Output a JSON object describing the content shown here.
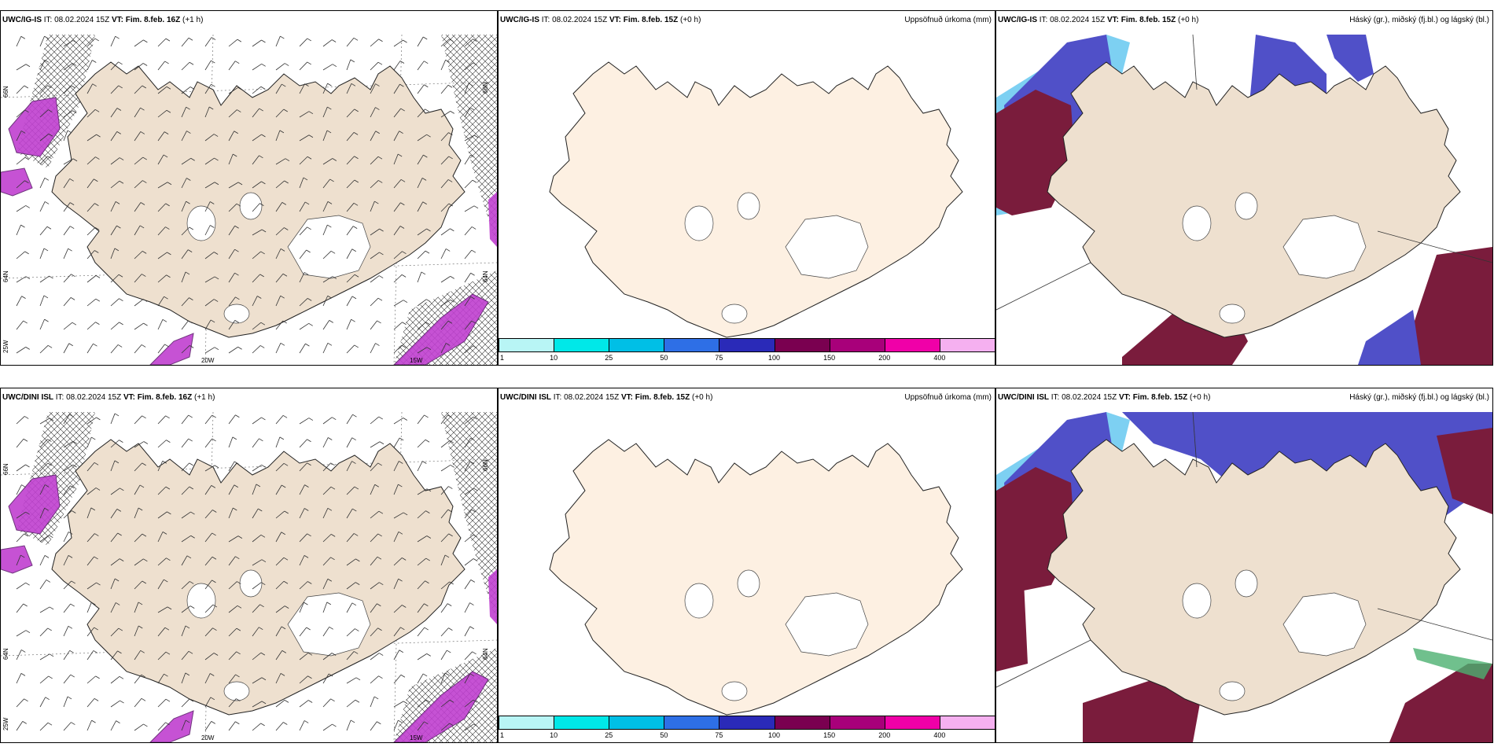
{
  "panels": [
    {
      "id": "p1",
      "model": "UWC/IG-IS",
      "it_label": "IT:",
      "it": "08.02.2024 15Z",
      "vt_label": "VT:",
      "vt": "Fim. 8.feb. 16Z",
      "lead": "(+1 h)",
      "right": "",
      "type": "wind"
    },
    {
      "id": "p2",
      "model": "UWC/IG-IS",
      "it_label": "IT:",
      "it": "08.02.2024 15Z",
      "vt_label": "VT:",
      "vt": "Fim. 8.feb. 15Z",
      "lead": "(+0 h)",
      "right": "Uppsöfnuð úrkoma (mm)",
      "type": "precip"
    },
    {
      "id": "p3",
      "model": "UWC/IG-IS",
      "it_label": "IT:",
      "it": "08.02.2024 15Z",
      "vt_label": "VT:",
      "vt": "Fim. 8.feb. 15Z",
      "lead": "(+0 h)",
      "right": "Háský (gr.), miðský (fj.bl.) og lágský (bl.)",
      "type": "cloud"
    },
    {
      "id": "p4",
      "model": "UWC/DINI ISL",
      "it_label": "IT:",
      "it": "08.02.2024 15Z",
      "vt_label": "VT:",
      "vt": "Fim. 8.feb. 16Z",
      "lead": "(+1 h)",
      "right": "",
      "type": "wind"
    },
    {
      "id": "p5",
      "model": "UWC/DINI ISL",
      "it_label": "IT:",
      "it": "08.02.2024 15Z",
      "vt_label": "VT:",
      "vt": "Fim. 8.feb. 15Z",
      "lead": "(+0 h)",
      "right": "Uppsöfnuð úrkoma (mm)",
      "type": "precip"
    },
    {
      "id": "p6",
      "model": "UWC/DINI ISL",
      "it_label": "IT:",
      "it": "08.02.2024 15Z",
      "vt_label": "VT:",
      "vt": "Fim. 8.feb. 15Z",
      "lead": "(+0 h)",
      "right": "Háský (gr.), miðský (fj.bl.) og lágský (bl.)",
      "type": "cloud"
    }
  ],
  "axis_labels": {
    "n66": "66N",
    "n64": "64N",
    "w20": "20W",
    "w15": "15W",
    "w25": "25W"
  },
  "colorbar": {
    "ticks": [
      "1",
      "10",
      "25",
      "50",
      "75",
      "100",
      "150",
      "200",
      "400"
    ],
    "colors": [
      "#b8f5f5",
      "#00e8e8",
      "#00bfe6",
      "#2e6fe6",
      "#2a2ab8",
      "#7a0050",
      "#a8007a",
      "#f000a8",
      "#f5b0f0"
    ]
  },
  "colors": {
    "land": "#eee0cf",
    "land_light": "#fdf0e2",
    "ocean": "#ffffff",
    "high_cloud": "#7a1c3c",
    "mid_cloud": "#5050c8",
    "low_cloud": "#66c8f0",
    "precip_mark": "#c040d0"
  }
}
